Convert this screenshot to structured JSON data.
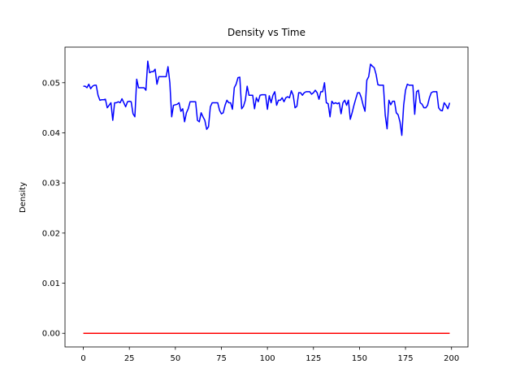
{
  "chart_data": {
    "type": "line",
    "title": "Density vs Time",
    "y_label": "Density",
    "x": [
      0,
      1,
      2,
      3,
      4,
      5,
      6,
      7,
      8,
      9,
      10,
      11,
      12,
      13,
      14,
      15,
      16,
      17,
      18,
      19,
      20,
      21,
      22,
      23,
      24,
      25,
      26,
      27,
      28,
      29,
      30,
      31,
      32,
      33,
      34,
      35,
      36,
      37,
      38,
      39,
      40,
      41,
      42,
      43,
      44,
      45,
      46,
      47,
      48,
      49,
      50,
      51,
      52,
      53,
      54,
      55,
      56,
      57,
      58,
      59,
      60,
      61,
      62,
      63,
      64,
      65,
      66,
      67,
      68,
      69,
      70,
      71,
      72,
      73,
      74,
      75,
      76,
      77,
      78,
      79,
      80,
      81,
      82,
      83,
      84,
      85,
      86,
      87,
      88,
      89,
      90,
      91,
      92,
      93,
      94,
      95,
      96,
      97,
      98,
      99,
      100,
      101,
      102,
      103,
      104,
      105,
      106,
      107,
      108,
      109,
      110,
      111,
      112,
      113,
      114,
      115,
      116,
      117,
      118,
      119,
      120,
      121,
      122,
      123,
      124,
      125,
      126,
      127,
      128,
      129,
      130,
      131,
      132,
      133,
      134,
      135,
      136,
      137,
      138,
      139,
      140,
      141,
      142,
      143,
      144,
      145,
      146,
      147,
      148,
      149,
      150,
      151,
      152,
      153,
      154,
      155,
      156,
      157,
      158,
      159,
      160,
      161,
      162,
      163,
      164,
      165,
      166,
      167,
      168,
      169,
      170,
      171,
      172,
      173,
      174,
      175,
      176,
      177,
      178,
      179,
      180,
      181,
      182,
      183,
      184,
      185,
      186,
      187,
      188,
      189,
      190,
      191,
      192,
      193,
      194,
      195,
      196,
      197,
      198,
      199
    ],
    "series": [
      {
        "color": "#0000ff",
        "values": [
          0.0493,
          0.0493,
          0.049,
          0.0497,
          0.0488,
          0.0493,
          0.0495,
          0.0495,
          0.0475,
          0.0465,
          0.0466,
          0.0466,
          0.0467,
          0.045,
          0.0455,
          0.046,
          0.0425,
          0.046,
          0.046,
          0.0462,
          0.046,
          0.0468,
          0.046,
          0.0452,
          0.0462,
          0.0463,
          0.0462,
          0.0438,
          0.0432,
          0.0507,
          0.049,
          0.049,
          0.049,
          0.049,
          0.0485,
          0.0543,
          0.052,
          0.0522,
          0.0522,
          0.0527,
          0.0497,
          0.0512,
          0.0512,
          0.0512,
          0.0512,
          0.0512,
          0.0532,
          0.05,
          0.0432,
          0.0455,
          0.0456,
          0.0457,
          0.046,
          0.0443,
          0.0448,
          0.0422,
          0.044,
          0.0448,
          0.0462,
          0.0462,
          0.0462,
          0.0462,
          0.0425,
          0.0422,
          0.044,
          0.0432,
          0.0425,
          0.0407,
          0.0412,
          0.0452,
          0.046,
          0.046,
          0.046,
          0.046,
          0.0445,
          0.0438,
          0.044,
          0.0455,
          0.0465,
          0.046,
          0.046,
          0.0447,
          0.049,
          0.0497,
          0.051,
          0.0511,
          0.0448,
          0.0453,
          0.0465,
          0.0493,
          0.0475,
          0.0475,
          0.0475,
          0.0448,
          0.047,
          0.0462,
          0.0475,
          0.0476,
          0.0476,
          0.0476,
          0.0447,
          0.0474,
          0.046,
          0.0475,
          0.0482,
          0.0455,
          0.0465,
          0.0465,
          0.047,
          0.0462,
          0.047,
          0.0472,
          0.047,
          0.0484,
          0.0475,
          0.045,
          0.0453,
          0.048,
          0.048,
          0.0475,
          0.048,
          0.0482,
          0.0482,
          0.0482,
          0.0477,
          0.048,
          0.0485,
          0.048,
          0.0467,
          0.0482,
          0.0482,
          0.05,
          0.046,
          0.0458,
          0.0432,
          0.0463,
          0.0458,
          0.046,
          0.0458,
          0.046,
          0.0438,
          0.046,
          0.0465,
          0.0455,
          0.0465,
          0.0427,
          0.044,
          0.0455,
          0.0468,
          0.048,
          0.048,
          0.047,
          0.0455,
          0.0443,
          0.0505,
          0.0512,
          0.0537,
          0.0533,
          0.053,
          0.0517,
          0.0496,
          0.0495,
          0.0495,
          0.0495,
          0.0435,
          0.0408,
          0.0465,
          0.0456,
          0.0463,
          0.0463,
          0.044,
          0.0436,
          0.0422,
          0.0395,
          0.0455,
          0.0485,
          0.0497,
          0.0495,
          0.0495,
          0.0495,
          0.0437,
          0.0482,
          0.0485,
          0.046,
          0.0457,
          0.045,
          0.045,
          0.0455,
          0.047,
          0.048,
          0.0482,
          0.0482,
          0.0482,
          0.045,
          0.0445,
          0.0444,
          0.046,
          0.0455,
          0.0448,
          0.046
        ]
      },
      {
        "color": "#ff0000",
        "values": [
          0,
          0,
          0,
          0,
          0,
          0,
          0,
          0,
          0,
          0,
          0,
          0,
          0,
          0,
          0,
          0,
          0,
          0,
          0,
          0,
          0,
          0,
          0,
          0,
          0,
          0,
          0,
          0,
          0,
          0,
          0,
          0,
          0,
          0,
          0,
          0,
          0,
          0,
          0,
          0,
          0,
          0,
          0,
          0,
          0,
          0,
          0,
          0,
          0,
          0,
          0,
          0,
          0,
          0,
          0,
          0,
          0,
          0,
          0,
          0,
          0,
          0,
          0,
          0,
          0,
          0,
          0,
          0,
          0,
          0,
          0,
          0,
          0,
          0,
          0,
          0,
          0,
          0,
          0,
          0,
          0,
          0,
          0,
          0,
          0,
          0,
          0,
          0,
          0,
          0,
          0,
          0,
          0,
          0,
          0,
          0,
          0,
          0,
          0,
          0,
          0,
          0,
          0,
          0,
          0,
          0,
          0,
          0,
          0,
          0,
          0,
          0,
          0,
          0,
          0,
          0,
          0,
          0,
          0,
          0,
          0,
          0,
          0,
          0,
          0,
          0,
          0,
          0,
          0,
          0,
          0,
          0,
          0,
          0,
          0,
          0,
          0,
          0,
          0,
          0,
          0,
          0,
          0,
          0,
          0,
          0,
          0,
          0,
          0,
          0,
          0,
          0,
          0,
          0,
          0,
          0,
          0,
          0,
          0,
          0,
          0,
          0,
          0,
          0,
          0,
          0,
          0,
          0,
          0,
          0,
          0,
          0,
          0,
          0,
          0,
          0,
          0,
          0,
          0,
          0,
          0,
          0,
          0,
          0,
          0,
          0,
          0,
          0,
          0,
          0,
          0,
          0,
          0,
          0,
          0,
          0,
          0,
          0,
          0,
          0
        ]
      }
    ],
    "xlim": [
      -9.95,
      208.95
    ],
    "xticks": [
      0,
      25,
      50,
      75,
      100,
      125,
      150,
      175,
      200
    ],
    "ylim": [
      -0.00272,
      0.0571
    ],
    "yticks": [
      {
        "value": 0,
        "label": "0.00"
      },
      {
        "value": 0.01,
        "label": "0.01"
      },
      {
        "value": 0.02,
        "label": "0.02"
      },
      {
        "value": 0.03,
        "label": "0.03"
      },
      {
        "value": 0.04,
        "label": "0.04"
      },
      {
        "value": 0.05,
        "label": "0.05"
      }
    ]
  }
}
